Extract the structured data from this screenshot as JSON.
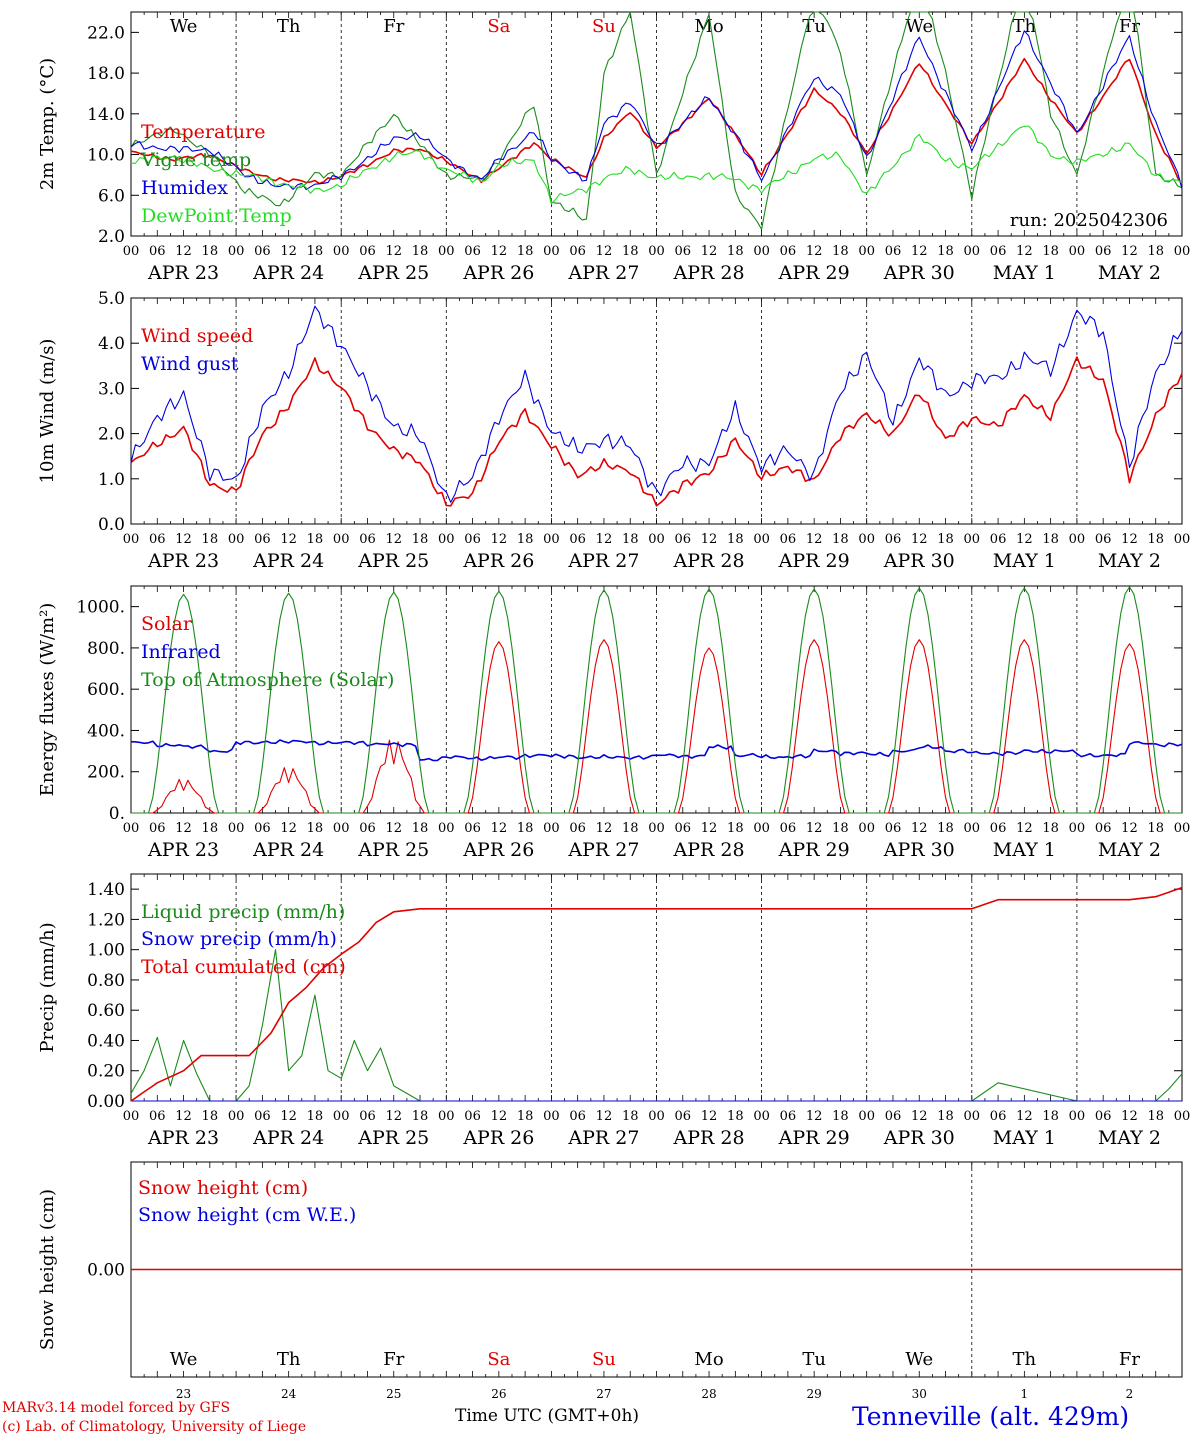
{
  "days": {
    "weekdays": [
      "We",
      "Th",
      "Fr",
      "Sa",
      "Su",
      "Mo",
      "Tu",
      "We",
      "Th",
      "Fr"
    ],
    "weekday_colors": [
      "#000000",
      "#000000",
      "#000000",
      "#e00000",
      "#e00000",
      "#000000",
      "#000000",
      "#000000",
      "#000000",
      "#000000"
    ],
    "dates": [
      "APR 23",
      "APR 24",
      "APR 25",
      "APR 26",
      "APR 27",
      "APR 28",
      "APR 29",
      "APR 30",
      "MAY  1",
      "MAY  2"
    ],
    "day_numbers": [
      "23",
      "24",
      "25",
      "26",
      "27",
      "28",
      "29",
      "30",
      "1",
      "2"
    ],
    "hour_ticks": [
      "00",
      "06",
      "12",
      "18"
    ],
    "last_tick": "00"
  },
  "run_label": "run: 2025042306",
  "xlabel": "Time UTC (GMT+0h)",
  "footer": {
    "model": "MARv3.14 model forced by GFS",
    "lab": "(c) Lab. of Climatology, University of Liege",
    "station": "Tenneville (alt. 429m)"
  },
  "colors": {
    "red": "#e00000",
    "green": "#1a8a1a",
    "blue": "#0000dd",
    "lightgreen": "#22dd22"
  },
  "chart_data": [
    {
      "type": "line",
      "ylabel": "2m Temp. (°C)",
      "ylim": [
        2.0,
        24.0
      ],
      "yticks": [
        "2.0",
        "6.0",
        "10.0",
        "14.0",
        "18.0",
        "22.0"
      ],
      "x": [
        0,
        10,
        18,
        26,
        34,
        42,
        48,
        60,
        66,
        72,
        80,
        84,
        92,
        96,
        104,
        108,
        114,
        120,
        132,
        138,
        144,
        156,
        162,
        168,
        180,
        186,
        192,
        204,
        210,
        216,
        228,
        234,
        240
      ],
      "series": [
        {
          "name": "Temperature",
          "color": "red",
          "values": [
            10.2,
            9.5,
            10.0,
            8.4,
            7.5,
            7.3,
            7.8,
            10.3,
            10.6,
            9.3,
            7.5,
            8.6,
            11.2,
            9.5,
            7.8,
            11.5,
            14.3,
            10.6,
            15.5,
            12.0,
            8.0,
            16.3,
            14.2,
            10.0,
            19.0,
            15.0,
            11.0,
            19.3,
            15.5,
            12.0,
            19.5,
            12.0,
            7.0
          ]
        },
        {
          "name": "Vigne temp",
          "color": "green",
          "values": [
            11.0,
            12.5,
            10.0,
            6.5,
            5.0,
            8.0,
            8.0,
            14.0,
            11.0,
            8.0,
            7.5,
            9.5,
            15.0,
            5.5,
            3.5,
            18.0,
            24.0,
            8.0,
            24.0,
            6.0,
            3.0,
            26.0,
            20.0,
            8.0,
            28.0,
            18.0,
            6.0,
            28.0,
            14.0,
            8.0,
            28.0,
            8.0,
            7.0
          ]
        },
        {
          "name": "Humidex",
          "color": "blue",
          "values": [
            11.0,
            10.5,
            10.5,
            8.0,
            6.8,
            7.0,
            7.8,
            11.5,
            12.0,
            9.5,
            7.5,
            9.5,
            12.3,
            9.5,
            7.5,
            13.0,
            15.3,
            10.7,
            15.6,
            12.0,
            7.5,
            17.5,
            16.0,
            9.5,
            21.6,
            16.0,
            10.5,
            22.2,
            17.0,
            12.0,
            21.6,
            13.0,
            7.0
          ]
        },
        {
          "name": "DewPoint Temp",
          "color": "lightgreen",
          "values": [
            9.3,
            9.8,
            8.6,
            8.0,
            7.2,
            6.4,
            7.0,
            9.9,
            10.2,
            8.5,
            7.3,
            8.9,
            9.5,
            5.5,
            6.7,
            7.6,
            8.6,
            7.7,
            7.9,
            7.6,
            6.5,
            9.6,
            9.9,
            6.0,
            11.8,
            9.5,
            8.6,
            13.0,
            10.0,
            9.2,
            11.0,
            8.0,
            7.2
          ]
        }
      ]
    },
    {
      "type": "line",
      "ylabel": "10m Wind (m/s)",
      "ylim": [
        0.0,
        5.0
      ],
      "yticks": [
        "0.0",
        "1.0",
        "2.0",
        "3.0",
        "4.0",
        "5.0"
      ],
      "x": [
        0,
        6,
        12,
        18,
        24,
        30,
        36,
        42,
        48,
        54,
        60,
        66,
        72,
        78,
        84,
        90,
        96,
        102,
        108,
        114,
        120,
        126,
        132,
        138,
        144,
        150,
        156,
        162,
        168,
        174,
        180,
        186,
        192,
        198,
        204,
        210,
        216,
        222,
        228,
        234,
        240
      ],
      "series": [
        {
          "name": "Wind speed",
          "color": "red",
          "values": [
            1.3,
            1.8,
            2.1,
            0.9,
            0.7,
            2.0,
            2.6,
            3.6,
            3.0,
            2.2,
            1.6,
            1.4,
            0.4,
            0.7,
            1.8,
            2.5,
            1.7,
            1.1,
            1.3,
            1.2,
            0.4,
            0.9,
            1.1,
            1.9,
            1.0,
            1.3,
            0.9,
            2.0,
            2.4,
            2.0,
            2.9,
            1.9,
            2.3,
            2.2,
            2.8,
            2.4,
            3.6,
            3.2,
            1.0,
            2.4,
            3.3
          ]
        },
        {
          "name": "Wind gust",
          "color": "blue",
          "values": [
            1.5,
            2.3,
            2.9,
            1.1,
            1.0,
            2.5,
            3.4,
            4.7,
            4.0,
            3.0,
            2.2,
            1.9,
            0.6,
            1.0,
            2.4,
            3.2,
            2.1,
            1.6,
            1.9,
            1.7,
            0.7,
            1.3,
            1.4,
            2.5,
            1.3,
            1.6,
            1.1,
            2.9,
            3.8,
            2.2,
            3.7,
            2.8,
            3.2,
            3.2,
            3.7,
            3.4,
            4.7,
            4.2,
            1.3,
            3.3,
            4.4
          ]
        }
      ]
    },
    {
      "type": "line",
      "ylabel": "Energy fluxes (W/m²)",
      "ylim": [
        0,
        1100
      ],
      "yticks": [
        "0.",
        "200.",
        "400.",
        "600.",
        "800.",
        "1000."
      ],
      "series": [
        {
          "name": "Solar",
          "color": "red",
          "day_peaks": [
            170,
            230,
            370,
            830,
            840,
            800,
            840,
            840,
            840,
            820
          ],
          "day_start_hour": 5,
          "day_end_hour": 19
        },
        {
          "name": "Infrared",
          "color": "blue",
          "values_by_day": [
            [
              340,
              330,
              320,
              300
            ],
            [
              340,
              345,
              345,
              340
            ],
            [
              340,
              335,
              330,
              260
            ],
            [
              270,
              265,
              270,
              280
            ],
            [
              275,
              270,
              270,
              270
            ],
            [
              280,
              275,
              320,
              280
            ],
            [
              270,
              275,
              300,
              290
            ],
            [
              285,
              300,
              320,
              300
            ],
            [
              290,
              290,
              300,
              300
            ],
            [
              280,
              280,
              340,
              330
            ]
          ]
        },
        {
          "name": "Top of Atmosphere (Solar)",
          "color": "green",
          "day_peaks": [
            1060,
            1065,
            1070,
            1075,
            1080,
            1085,
            1085,
            1090,
            1090,
            1095
          ],
          "day_start_hour": 4,
          "day_end_hour": 20
        }
      ]
    },
    {
      "type": "line",
      "ylabel": "Precip (mm/h)",
      "ylim": [
        0.0,
        1.5
      ],
      "yticks": [
        "0.00",
        "0.20",
        "0.40",
        "0.60",
        "0.80",
        "1.00",
        "1.20",
        "1.40"
      ],
      "x": [
        0,
        3,
        6,
        9,
        12,
        15,
        18,
        21,
        24,
        27,
        30,
        33,
        36,
        39,
        42,
        45,
        48,
        51,
        54,
        57,
        60,
        66,
        72,
        192,
        198,
        216,
        228,
        234,
        237,
        240
      ],
      "series": [
        {
          "name": "Liquid precip (mm/h)",
          "color": "green",
          "values": [
            0.05,
            0.2,
            0.42,
            0.1,
            0.4,
            0.18,
            0.0,
            0.0,
            0.0,
            0.1,
            0.5,
            1.0,
            0.2,
            0.3,
            0.7,
            0.2,
            0.15,
            0.4,
            0.2,
            0.35,
            0.1,
            0.0,
            0.0,
            0.0,
            0.12,
            0.0,
            0.0,
            0.0,
            0.08,
            0.18
          ]
        },
        {
          "name": "Snow precip (mm/h)",
          "color": "blue",
          "values": [
            0,
            0,
            0,
            0,
            0,
            0,
            0,
            0,
            0,
            0,
            0,
            0,
            0,
            0,
            0,
            0,
            0,
            0,
            0,
            0,
            0,
            0,
            0,
            0,
            0,
            0,
            0,
            0,
            0,
            0
          ]
        },
        {
          "name": "Total cumulated (cm)",
          "color": "red",
          "cumulative": [
            [
              0,
              0.0
            ],
            [
              6,
              0.12
            ],
            [
              12,
              0.2
            ],
            [
              16,
              0.3
            ],
            [
              27,
              0.3
            ],
            [
              32,
              0.45
            ],
            [
              36,
              0.65
            ],
            [
              40,
              0.75
            ],
            [
              44,
              0.88
            ],
            [
              48,
              0.97
            ],
            [
              52,
              1.05
            ],
            [
              56,
              1.18
            ],
            [
              60,
              1.25
            ],
            [
              66,
              1.27
            ],
            [
              192,
              1.27
            ],
            [
              198,
              1.33
            ],
            [
              228,
              1.33
            ],
            [
              234,
              1.35
            ],
            [
              240,
              1.41
            ]
          ]
        }
      ]
    },
    {
      "type": "line",
      "ylabel": "Snow height (cm)",
      "yticks": [
        "0.00"
      ],
      "series": [
        {
          "name": "Snow height (cm)",
          "color": "red",
          "values": [
            0.0,
            0.0
          ]
        },
        {
          "name": "Snow height (cm W.E.)",
          "color": "blue",
          "values": [
            0.0,
            0.0
          ]
        }
      ]
    }
  ]
}
